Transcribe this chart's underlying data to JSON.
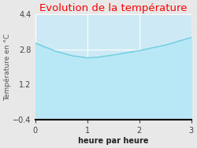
{
  "title": "Evolution de la température",
  "title_color": "#ff0000",
  "xlabel": "heure par heure",
  "ylabel": "Température en °C",
  "xlim": [
    0,
    3
  ],
  "ylim": [
    -0.4,
    4.4
  ],
  "x_ticks": [
    0,
    1,
    2,
    3
  ],
  "y_ticks": [
    -0.4,
    1.2,
    2.8,
    4.4
  ],
  "x_data": [
    0,
    0.15,
    0.4,
    0.7,
    1.0,
    1.2,
    1.5,
    2.0,
    2.5,
    3.0
  ],
  "y_data": [
    3.1,
    2.95,
    2.72,
    2.52,
    2.42,
    2.45,
    2.55,
    2.75,
    3.0,
    3.35
  ],
  "line_color": "#6dcde0",
  "fill_color": "#b8e8f5",
  "fill_alpha": 1.0,
  "background_color": "#e8e8e8",
  "plot_bg_color": "#cce9f5",
  "grid_color": "#ffffff",
  "axis_bottom_color": "#000000",
  "title_fontsize": 9.5,
  "label_fontsize": 7,
  "tick_fontsize": 7,
  "ylabel_fontsize": 6.5
}
